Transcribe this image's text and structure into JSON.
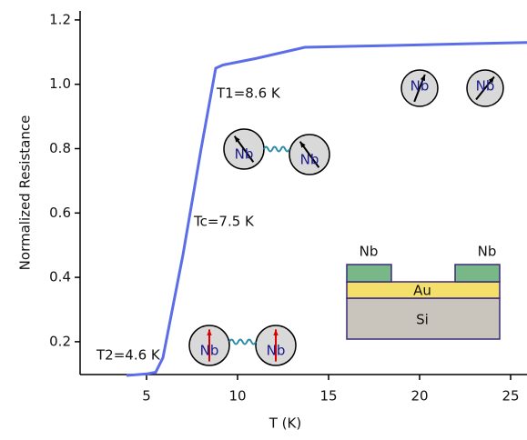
{
  "chart_data": {
    "type": "line",
    "x_label": "T (K)",
    "y_label": "Normalized Resistance",
    "xlim": [
      1.35,
      25.9
    ],
    "ylim": [
      0.098,
      1.228
    ],
    "xticks": [
      5,
      10,
      15,
      20,
      25
    ],
    "yticks": [
      0.2,
      0.4,
      0.6,
      0.8,
      {
        "value": 1,
        "label": "1.0"
      },
      1.2
    ],
    "series": [
      {
        "color": "#5b6ee8",
        "x": [
          3.9,
          5.0,
          5.5,
          5.9,
          7.0,
          8.0,
          8.8,
          9.2,
          11,
          13.7,
          18,
          25.9
        ],
        "values": [
          0.095,
          0.1,
          0.105,
          0.15,
          0.47,
          0.8,
          1.05,
          1.06,
          1.08,
          1.115,
          1.12,
          1.13
        ]
      }
    ],
    "annotations": [
      "T1=8.6 K",
      "Tc=7.5 K",
      "T2=4.6 K"
    ],
    "spin_labels": [
      "Nb",
      "Nb",
      "Nb",
      "Nb",
      "Nb",
      "Nb"
    ],
    "inset_labels": [
      "Nb",
      "Nb",
      "Au",
      "Si"
    ]
  }
}
